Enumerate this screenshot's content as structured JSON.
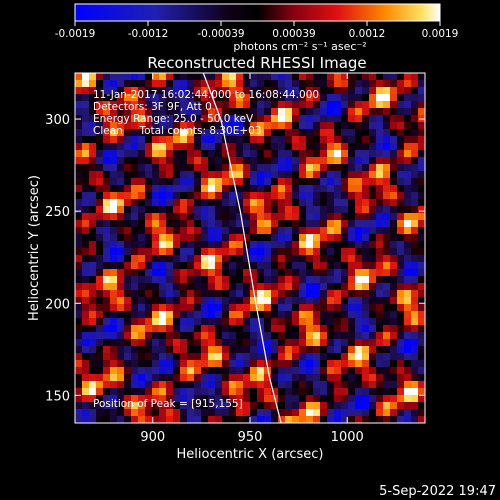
{
  "chart_data": {
    "type": "heatmap",
    "title": "Reconstructed RHESSI Image",
    "xlabel": "Heliocentric X (arcsec)",
    "ylabel": "Heliocentric Y (arcsec)",
    "xlim": [
      860,
      1040
    ],
    "ylim": [
      135,
      325
    ],
    "xticks": [
      900,
      950,
      1000
    ],
    "yticks": [
      150,
      200,
      250,
      300
    ],
    "colorbar": {
      "range": [
        -0.0019,
        0.0019
      ],
      "ticks": [
        "-0.0019",
        "-0.0012",
        "-0.00039",
        "0.00039",
        "0.0012",
        "0.0019"
      ],
      "colormap": "blue-black-red-yellow-white"
    },
    "colorbar_unit": "photons cm⁻² s⁻¹ asec⁻²",
    "annotations": [
      "11-Jan-2017 16:02:44.000 to 16:08:44.000",
      "Detectors: 3F 9F, Att 0",
      "Energy Range: 25.0 - 50.0 keV",
      "Clean     Total counts: 8.30E+03"
    ],
    "peak_label": "Position of Peak = [915,155]",
    "peak_position": [
      915,
      155
    ],
    "limb_line": [
      [
        926,
        325
      ],
      [
        935,
        300
      ],
      [
        945,
        250
      ],
      [
        953,
        200
      ],
      [
        960,
        160
      ],
      [
        966,
        135
      ]
    ],
    "grid": false
  },
  "footer": {
    "date": "5-Sep-2022 19:47"
  }
}
